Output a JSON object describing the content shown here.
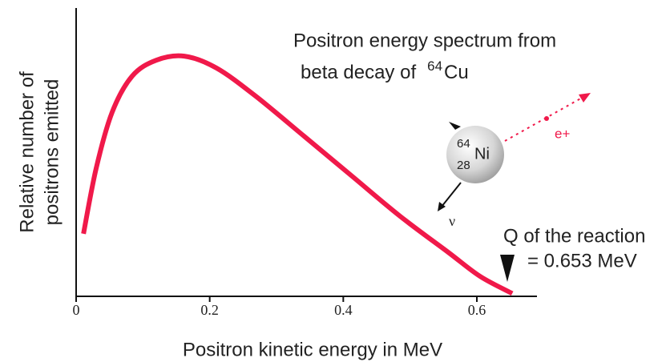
{
  "chart_data": {
    "type": "line",
    "title": "Positron energy spectrum from",
    "subtitle": "beta decay of",
    "title_superscript": "64",
    "title_element": "Cu",
    "x_label": "Positron kinetic energy in MeV",
    "y_label": [
      "Relative number of",
      "positrons emitted"
    ],
    "x": [
      0.011,
      0.03,
      0.054,
      0.084,
      0.12,
      0.162,
      0.21,
      0.269,
      0.341,
      0.413,
      0.485,
      0.557,
      0.605,
      0.653
    ],
    "series": [
      {
        "color": "#f0194a",
        "values": [
          0.217,
          0.444,
          0.639,
          0.764,
          0.819,
          0.833,
          0.792,
          0.694,
          0.556,
          0.417,
          0.278,
          0.153,
          0.069,
          0.01
        ]
      }
    ],
    "xlim": [
      0,
      0.69
    ],
    "ylim": [
      0,
      1
    ],
    "xticks": [
      0,
      0.2,
      0.4,
      0.6
    ],
    "annotations": {
      "q_line1": "Q of the reaction",
      "q_line2": "= 0.653 MeV",
      "positron": "e+",
      "neutrino": "ν",
      "mass_number": "64",
      "atomic_number": "28",
      "element": "Ni"
    }
  }
}
